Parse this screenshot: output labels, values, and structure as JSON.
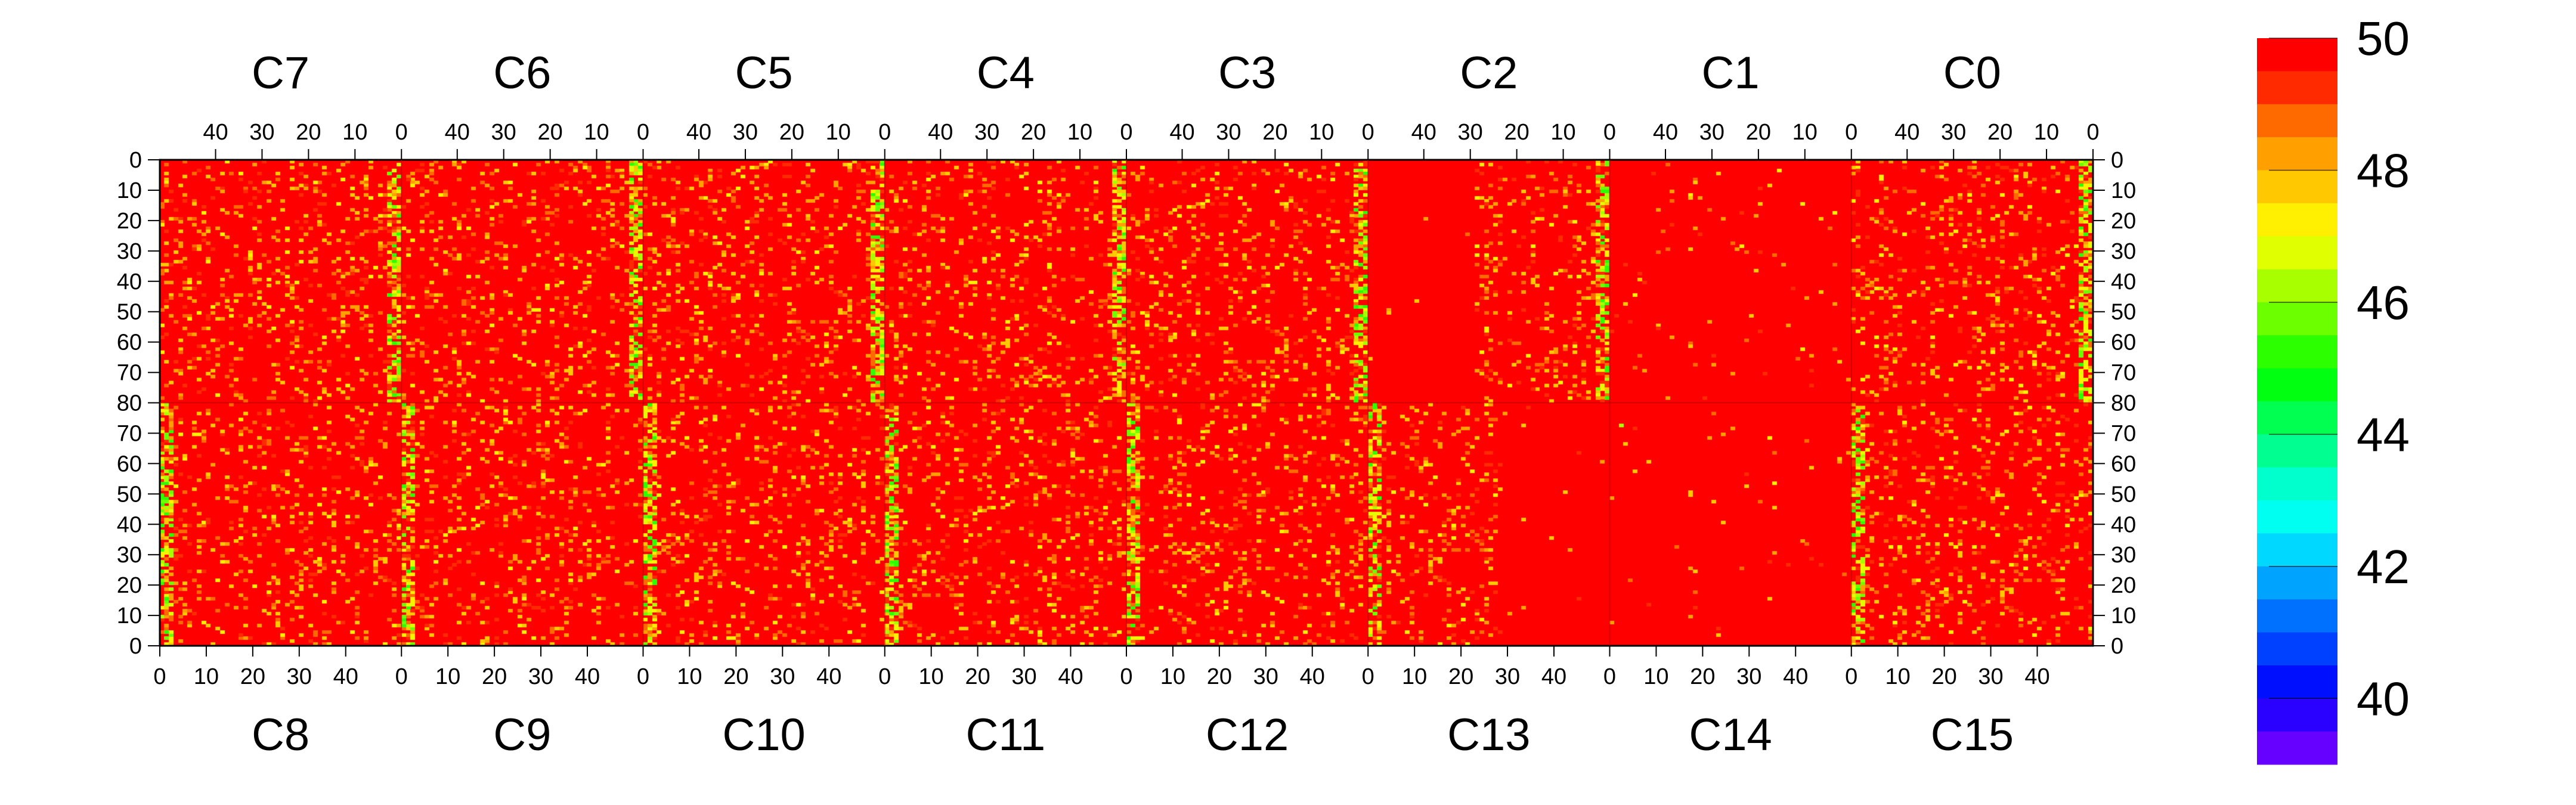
{
  "chart_data": {
    "type": "heatmap",
    "title": "",
    "top_chip_labels": [
      "C7",
      "C6",
      "C5",
      "C4",
      "C3",
      "C2",
      "C1",
      "C0"
    ],
    "bottom_chip_labels": [
      "C8",
      "C9",
      "C10",
      "C11",
      "C12",
      "C13",
      "C14",
      "C15"
    ],
    "columns_per_chip": 52,
    "rows_per_half": 80,
    "top_x_ticks": [
      "40",
      "30",
      "20",
      "10",
      "0"
    ],
    "top_x_tick_values": [
      40,
      30,
      20,
      10,
      0
    ],
    "bottom_x_ticks": [
      "0",
      "10",
      "20",
      "30",
      "40"
    ],
    "bottom_x_tick_values": [
      0,
      10,
      20,
      30,
      40
    ],
    "y_ticks_top_half": [
      "0",
      "10",
      "20",
      "30",
      "40",
      "50",
      "60",
      "70",
      "80"
    ],
    "y_ticks_bottom_half": [
      "70",
      "60",
      "50",
      "40",
      "30",
      "20",
      "10",
      "0"
    ],
    "colorbar": {
      "min": 39,
      "max": 50,
      "tick_labels": [
        "50",
        "48",
        "46",
        "44",
        "42",
        "40"
      ],
      "tick_values": [
        50,
        48,
        46,
        44,
        42,
        40
      ],
      "levels": [
        "#ff0000",
        "#ff2a00",
        "#ff6a00",
        "#ffa000",
        "#ffc800",
        "#ffef00",
        "#e0ff00",
        "#a8ff00",
        "#6cff00",
        "#2cff00",
        "#00ff10",
        "#00ff50",
        "#00ff90",
        "#00ffcc",
        "#00fff0",
        "#00d8ff",
        "#00a4ff",
        "#0070ff",
        "#0040ff",
        "#0010ff",
        "#2a00ff",
        "#6600ff"
      ]
    },
    "typical_value": 50,
    "notes_visible_structure": {
      "edge_columns_lower_values": [
        "C7",
        "C6",
        "C5",
        "C4",
        "C3",
        "C2"
      ],
      "uniform_regions_near_max": [
        "C2 right part",
        "C1",
        "C13 right part",
        "C14"
      ]
    }
  }
}
